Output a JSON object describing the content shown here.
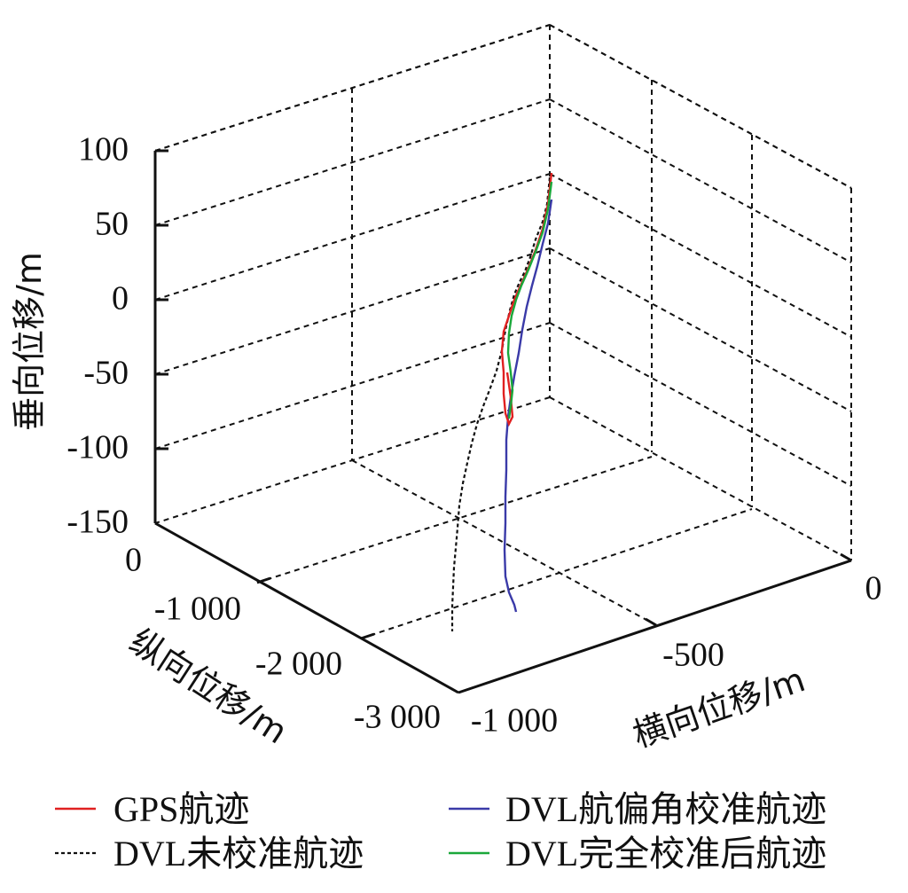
{
  "chart_data": {
    "type": "line3d",
    "axes": {
      "z": {
        "label": "垂向位移/m",
        "ticks": [
          "100",
          "50",
          "0",
          "-50",
          "-100",
          "-150"
        ],
        "range": [
          -150,
          100
        ]
      },
      "y": {
        "label": "纵向位移/m",
        "ticks": [
          "0",
          "-1 000",
          "-2 000",
          "-3 000"
        ],
        "range": [
          -3000,
          0
        ]
      },
      "x": {
        "label": "横向位移/m",
        "ticks": [
          "0",
          "-500",
          "-1 000"
        ],
        "range": [
          -1000,
          0
        ]
      }
    },
    "grid": true,
    "legend_position": "bottom",
    "series": [
      {
        "name": "GPS航迹",
        "color": "#e02020",
        "style": "solid"
      },
      {
        "name": "DVL航偏角校准航迹",
        "color": "#3a3aa8",
        "style": "solid"
      },
      {
        "name": "DVL未校准航迹",
        "color": "#111111",
        "style": "dashed"
      },
      {
        "name": "DVL完全校准后航迹",
        "color": "#1aa83a",
        "style": "solid"
      }
    ]
  }
}
